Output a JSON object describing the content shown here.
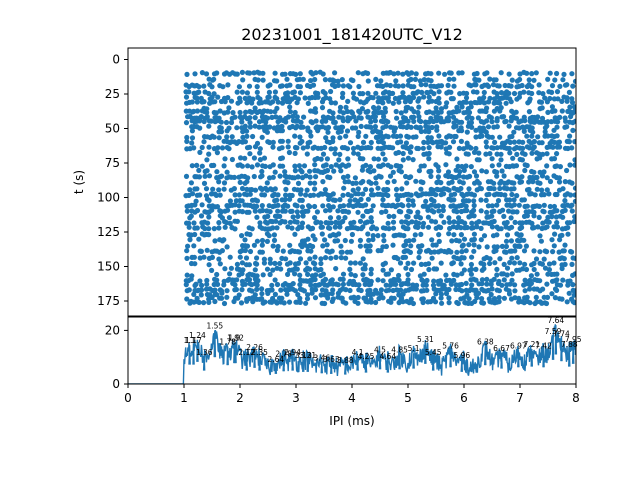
{
  "figure": {
    "title": "20231001_181420UTC_V12",
    "accent_color": "#1f77b4"
  },
  "chart_data": [
    {
      "type": "scatter",
      "title": "20231001_181420UTC_V12",
      "xlabel": "",
      "ylabel": "t (s)",
      "xlim": [
        0,
        8
      ],
      "ylim": [
        0,
        180
      ],
      "y_inverted": true,
      "yticks": [
        0,
        25,
        50,
        75,
        100,
        125,
        150,
        175
      ],
      "grid": false,
      "point_color": "#1f77b4",
      "x_start": 1.05,
      "row_times": [
        10,
        15,
        19,
        24,
        28,
        31,
        35,
        38,
        42,
        45,
        49,
        52,
        56,
        60,
        64,
        68,
        72,
        77,
        81,
        85,
        89,
        94,
        98,
        102,
        106,
        110,
        114,
        118,
        122,
        127,
        131,
        135,
        139,
        144,
        148,
        152,
        156,
        160,
        163,
        167,
        170,
        173,
        176
      ]
    },
    {
      "type": "line",
      "xlabel": "IPI (ms)",
      "ylabel": "",
      "xlim": [
        0,
        8
      ],
      "ylim": [
        0,
        25
      ],
      "xticks": [
        0,
        1,
        2,
        3,
        4,
        5,
        6,
        7,
        8
      ],
      "yticks": [
        0,
        20
      ],
      "line_color": "#1f77b4",
      "peaks": [
        {
          "x": 1.1,
          "y": 14.5,
          "label": "1.1"
        },
        {
          "x": 1.17,
          "y": 14.5,
          "label": "1.17"
        },
        {
          "x": 1.24,
          "y": 16.5,
          "label": "1.24"
        },
        {
          "x": 1.36,
          "y": 10.0,
          "label": "1.36"
        },
        {
          "x": 1.55,
          "y": 20.0,
          "label": "1.55"
        },
        {
          "x": 1.78,
          "y": 14.0,
          "label": "1.78"
        },
        {
          "x": 1.9,
          "y": 15.5,
          "label": "1.9"
        },
        {
          "x": 1.92,
          "y": 15.5,
          "label": "1.92"
        },
        {
          "x": 2.12,
          "y": 10.0,
          "label": "2.12"
        },
        {
          "x": 2.26,
          "y": 12.0,
          "label": "2.26"
        },
        {
          "x": 2.35,
          "y": 10.0,
          "label": "2.35"
        },
        {
          "x": 2.64,
          "y": 7.5,
          "label": "2.64"
        },
        {
          "x": 2.78,
          "y": 9.5,
          "label": "2.78"
        },
        {
          "x": 2.94,
          "y": 10.0,
          "label": "2.94"
        },
        {
          "x": 3.13,
          "y": 9.0,
          "label": "3.13"
        },
        {
          "x": 3.21,
          "y": 9.0,
          "label": "3.21"
        },
        {
          "x": 3.46,
          "y": 8.0,
          "label": "3.46"
        },
        {
          "x": 3.63,
          "y": 7.5,
          "label": "3.63"
        },
        {
          "x": 3.88,
          "y": 7.0,
          "label": "3.88"
        },
        {
          "x": 4.1,
          "y": 10.0,
          "label": "4.1"
        },
        {
          "x": 4.25,
          "y": 8.5,
          "label": "4.25"
        },
        {
          "x": 4.5,
          "y": 11.0,
          "label": "4.5"
        },
        {
          "x": 4.64,
          "y": 8.5,
          "label": "4.64"
        },
        {
          "x": 4.85,
          "y": 11.0,
          "label": "4.85"
        },
        {
          "x": 5.1,
          "y": 11.5,
          "label": "5.1"
        },
        {
          "x": 5.31,
          "y": 15.0,
          "label": "5.31"
        },
        {
          "x": 5.45,
          "y": 10.0,
          "label": "5.45"
        },
        {
          "x": 5.76,
          "y": 12.5,
          "label": "5.76"
        },
        {
          "x": 5.96,
          "y": 9.0,
          "label": "5.96"
        },
        {
          "x": 6.38,
          "y": 14.0,
          "label": "6.38"
        },
        {
          "x": 6.67,
          "y": 11.5,
          "label": "6.67"
        },
        {
          "x": 6.97,
          "y": 12.5,
          "label": "6.97"
        },
        {
          "x": 7.21,
          "y": 13.0,
          "label": "7.21"
        },
        {
          "x": 7.42,
          "y": 12.5,
          "label": "7.42"
        },
        {
          "x": 7.59,
          "y": 18.0,
          "label": "7.59"
        },
        {
          "x": 7.64,
          "y": 22.0,
          "label": "7.64"
        },
        {
          "x": 7.74,
          "y": 17.0,
          "label": "7.74"
        },
        {
          "x": 7.88,
          "y": 13.0,
          "label": "7.88"
        },
        {
          "x": 7.95,
          "y": 15.0,
          "label": "7.95"
        }
      ]
    }
  ]
}
